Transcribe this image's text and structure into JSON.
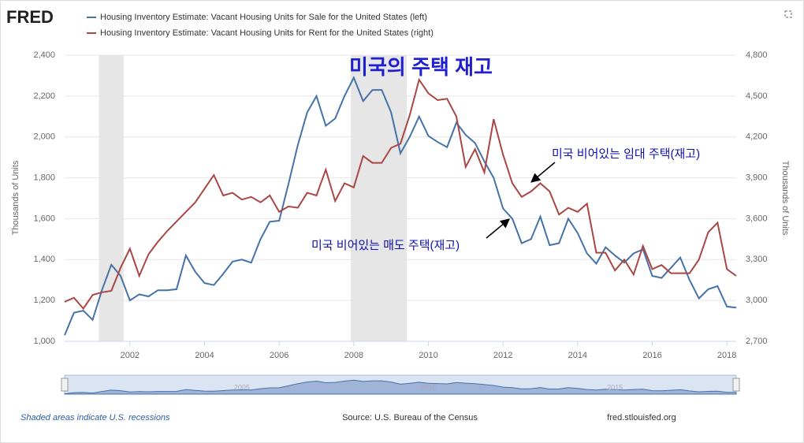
{
  "chart_data": {
    "type": "line",
    "logo": "FRED",
    "title": "미국의 주택 재고",
    "annotations": [
      "미국 비어있는 임대 주택(재고)",
      "미국 비어있는 매도 주택(재고)"
    ],
    "ylabel": "Thousands of Units",
    "y2label": "Thousands of Units",
    "note": "Shaded areas indicate U.S. recessions",
    "source": "Source: U.S. Bureau of the Census",
    "site": "fred.stlouisfed.org",
    "navigator_ticks": [
      2005,
      2010,
      2015
    ],
    "recessions": [
      [
        2001.17,
        2001.83
      ],
      [
        2007.92,
        2009.42
      ]
    ],
    "xlim": [
      2000.25,
      2018.25
    ],
    "xticks": [
      2002,
      2004,
      2006,
      2008,
      2010,
      2012,
      2014,
      2016,
      2018
    ],
    "ylim": [
      1000,
      2400
    ],
    "yticks": [
      {
        "value": 1000,
        "label": "1,000"
      },
      {
        "value": 1200,
        "label": "1,200"
      },
      {
        "value": 1400,
        "label": "1,400"
      },
      {
        "value": 1600,
        "label": "1,600"
      },
      {
        "value": 1800,
        "label": "1,800"
      },
      {
        "value": 2000,
        "label": "2,000"
      },
      {
        "value": 2200,
        "label": "2,200"
      },
      {
        "value": 2400,
        "label": "2,400"
      }
    ],
    "y2lim": [
      2700,
      4800
    ],
    "y2ticks": [
      {
        "value": 2700,
        "label": "2,700"
      },
      {
        "value": 3000,
        "label": "3,000"
      },
      {
        "value": 3300,
        "label": "3,300"
      },
      {
        "value": 3600,
        "label": "3,600"
      },
      {
        "value": 3900,
        "label": "3,900"
      },
      {
        "value": 4200,
        "label": "4,200"
      },
      {
        "value": 4500,
        "label": "4,500"
      },
      {
        "value": 4800,
        "label": "4,800"
      }
    ],
    "grid": true,
    "x": [
      2000.25,
      2000.5,
      2000.75,
      2001,
      2001.25,
      2001.5,
      2001.75,
      2002,
      2002.25,
      2002.5,
      2002.75,
      2003,
      2003.25,
      2003.5,
      2003.75,
      2004,
      2004.25,
      2004.5,
      2004.75,
      2005,
      2005.25,
      2005.5,
      2005.75,
      2006,
      2006.25,
      2006.5,
      2006.75,
      2007,
      2007.25,
      2007.5,
      2007.75,
      2008,
      2008.25,
      2008.5,
      2008.75,
      2009,
      2009.25,
      2009.5,
      2009.75,
      2010,
      2010.25,
      2010.5,
      2010.75,
      2011,
      2011.25,
      2011.5,
      2011.75,
      2012,
      2012.25,
      2012.5,
      2012.75,
      2013,
      2013.25,
      2013.5,
      2013.75,
      2014,
      2014.25,
      2014.5,
      2014.75,
      2015,
      2015.25,
      2015.5,
      2015.75,
      2016,
      2016.25,
      2016.5,
      2016.75,
      2017,
      2017.25,
      2017.5,
      2017.75,
      2018,
      2018.25
    ],
    "series": [
      {
        "name": "Housing Inventory Estimate: Vacant Housing Units for Sale for the United States (left)",
        "color": "#4572a7",
        "values": [
          1030,
          1140,
          1150,
          1105,
          1250,
          1375,
          1320,
          1200,
          1230,
          1220,
          1250,
          1250,
          1255,
          1420,
          1340,
          1285,
          1275,
          1330,
          1390,
          1400,
          1385,
          1500,
          1585,
          1590,
          1770,
          1960,
          2120,
          2200,
          2055,
          2090,
          2200,
          2290,
          2175,
          2230,
          2230,
          2120,
          1920,
          2000,
          2100,
          2005,
          1975,
          1950,
          2070,
          2010,
          1970,
          1880,
          1800,
          1650,
          1600,
          1480,
          1500,
          1610,
          1470,
          1480,
          1600,
          1530,
          1430,
          1380,
          1460,
          1420,
          1385,
          1430,
          1450,
          1320,
          1310,
          1360,
          1410,
          1300,
          1210,
          1255,
          1270,
          1170,
          1165
        ]
      },
      {
        "name": "Housing Inventory Estimate: Vacant Housing Units for Rent for the United States (right)",
        "color": "#aa4643",
        "axis": "y2",
        "values": [
          2990,
          3020,
          2940,
          3040,
          3060,
          3070,
          3240,
          3380,
          3180,
          3340,
          3430,
          3510,
          3580,
          3650,
          3720,
          3820,
          3920,
          3770,
          3790,
          3740,
          3760,
          3720,
          3770,
          3650,
          3690,
          3680,
          3790,
          3770,
          3960,
          3730,
          3860,
          3830,
          4060,
          4010,
          4010,
          4120,
          4150,
          4360,
          4620,
          4520,
          4470,
          4480,
          4350,
          3980,
          4110,
          3940,
          4330,
          4070,
          3860,
          3760,
          3800,
          3860,
          3800,
          3630,
          3680,
          3650,
          3710,
          3350,
          3350,
          3220,
          3300,
          3190,
          3400,
          3230,
          3260,
          3200,
          3200,
          3200,
          3300,
          3500,
          3570,
          3230,
          3180
        ]
      }
    ]
  }
}
